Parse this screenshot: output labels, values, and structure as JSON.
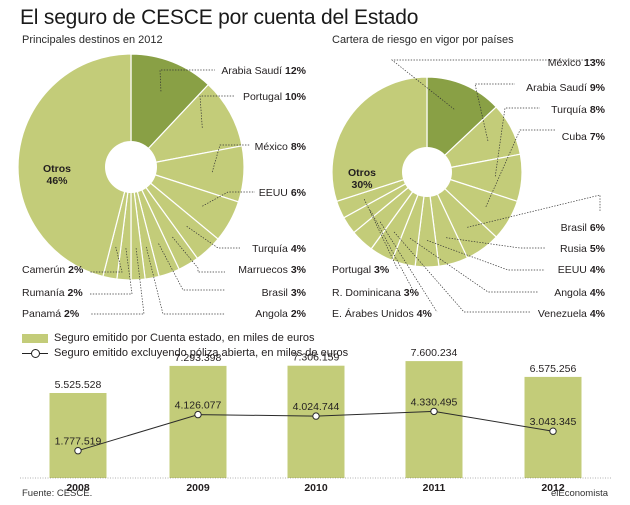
{
  "title": "El seguro de CESCE por cuenta del Estado",
  "colors": {
    "green_light": "#c3cc79",
    "green_dark": "#89a045",
    "line": "#2b2b2b",
    "stroke": "#ffffff"
  },
  "footer": {
    "source": "Fuente: CESCE.",
    "brand": "elEconomista"
  },
  "chart_data": [
    {
      "type": "pie",
      "title": "Principales destinos en 2012",
      "slices": [
        {
          "label": "Arabia Saudí",
          "value": 12,
          "text": "12%"
        },
        {
          "label": "Portugal",
          "value": 10,
          "text": "10%"
        },
        {
          "label": "México",
          "value": 8,
          "text": "8%"
        },
        {
          "label": "EEUU",
          "value": 6,
          "text": "6%"
        },
        {
          "label": "Turquía",
          "value": 4,
          "text": "4%"
        },
        {
          "label": "Marruecos",
          "value": 3,
          "text": "3%"
        },
        {
          "label": "Brasil",
          "value": 3,
          "text": "3%"
        },
        {
          "label": "Angola",
          "value": 2,
          "text": "2%"
        },
        {
          "label": "Panamá",
          "value": 2,
          "text": "2%"
        },
        {
          "label": "Rumanía",
          "value": 2,
          "text": "2%"
        },
        {
          "label": "Camerún",
          "value": 2,
          "text": "2%"
        },
        {
          "label": "Otros",
          "value": 46,
          "text": "46%"
        }
      ],
      "highlight": "Arabia Saudí"
    },
    {
      "type": "pie",
      "title": "Cartera de riesgo en vigor por países",
      "slices": [
        {
          "label": "México",
          "value": 13,
          "text": "13%"
        },
        {
          "label": "Arabia Saudí",
          "value": 9,
          "text": "9%"
        },
        {
          "label": "Turquía",
          "value": 8,
          "text": "8%"
        },
        {
          "label": "Cuba",
          "value": 7,
          "text": "7%"
        },
        {
          "label": "Brasil",
          "value": 6,
          "text": "6%"
        },
        {
          "label": "Rusia",
          "value": 5,
          "text": "5%"
        },
        {
          "label": "EEUU",
          "value": 4,
          "text": "4%"
        },
        {
          "label": "Angola",
          "value": 4,
          "text": "4%"
        },
        {
          "label": "Venezuela",
          "value": 4,
          "text": "4%"
        },
        {
          "label": "E. Árabes Unidos",
          "value": 4,
          "text": "4%"
        },
        {
          "label": "R. Dominicana",
          "value": 3,
          "text": "3%"
        },
        {
          "label": "Portugal",
          "value": 3,
          "text": "3%"
        },
        {
          "label": "Otros",
          "value": 30,
          "text": "30%"
        }
      ],
      "highlight": "México"
    },
    {
      "type": "bar",
      "categories": [
        "2008",
        "2009",
        "2010",
        "2011",
        "2012"
      ],
      "series": [
        {
          "name": "Seguro emitido por Cuenta estado, en miles de euros",
          "kind": "bar",
          "values": [
            5525528,
            7293398,
            7306159,
            7600234,
            6575256
          ],
          "labels": [
            "5.525.528",
            "7.293.398",
            "7.306.159",
            "7.600.234",
            "6.575.256"
          ]
        },
        {
          "name": "Seguro emitido excluyendo póliza abierta, en miles de euros",
          "kind": "line",
          "values": [
            1777519,
            4126077,
            4024744,
            4330495,
            3043345
          ],
          "labels": [
            "1.777.519",
            "4.126.077",
            "4.024.744",
            "4.330.495",
            "3.043.345"
          ]
        }
      ],
      "ylim": [
        0,
        8000000
      ]
    }
  ]
}
